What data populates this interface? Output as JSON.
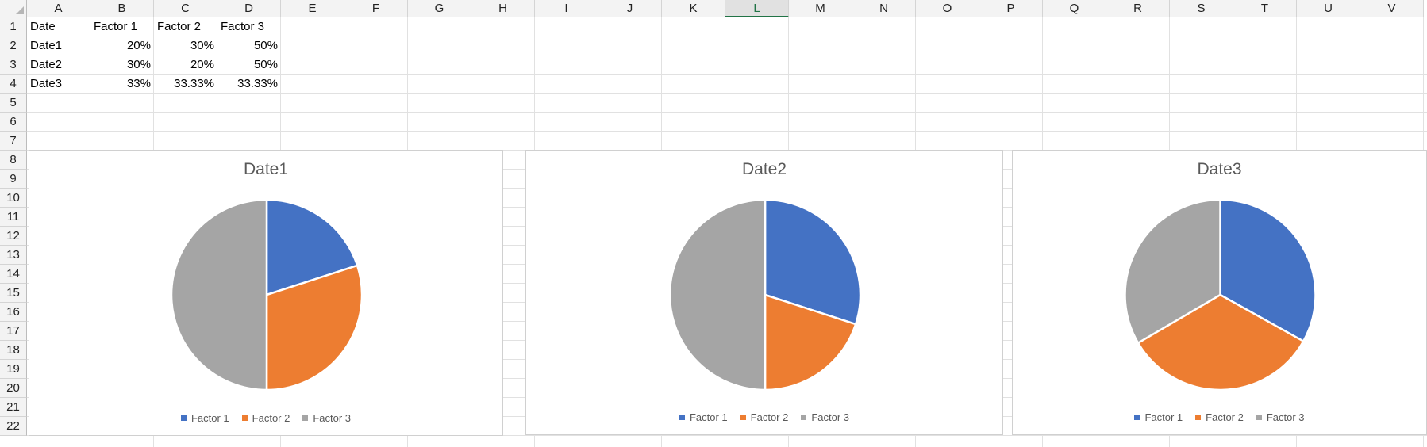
{
  "columns": [
    "A",
    "B",
    "C",
    "D",
    "E",
    "F",
    "G",
    "H",
    "I",
    "J",
    "K",
    "L",
    "M",
    "N",
    "O",
    "P",
    "Q",
    "R",
    "S",
    "T",
    "U",
    "V"
  ],
  "selected_column": "L",
  "rows": [
    "1",
    "2",
    "3",
    "4",
    "5",
    "6",
    "7",
    "8",
    "9",
    "10",
    "11",
    "12",
    "13",
    "14",
    "15",
    "16",
    "17",
    "18",
    "19",
    "20",
    "21",
    "22"
  ],
  "table": {
    "header": [
      "Date",
      "Factor 1",
      "Factor 2",
      "Factor 3"
    ],
    "rows": [
      [
        "Date1",
        "20%",
        "30%",
        "50%"
      ],
      [
        "Date2",
        "30%",
        "20%",
        "50%"
      ],
      [
        "Date3",
        "33%",
        "33.33%",
        "33.33%"
      ]
    ]
  },
  "colors": {
    "Factor 1": "#4472c4",
    "Factor 2": "#ed7d31",
    "Factor 3": "#a5a5a5"
  },
  "chart_data": [
    {
      "type": "pie",
      "title": "Date1",
      "categories": [
        "Factor 1",
        "Factor 2",
        "Factor 3"
      ],
      "values": [
        20,
        30,
        50
      ],
      "legend": "bottom"
    },
    {
      "type": "pie",
      "title": "Date2",
      "categories": [
        "Factor 1",
        "Factor 2",
        "Factor 3"
      ],
      "values": [
        30,
        20,
        50
      ],
      "legend": "bottom"
    },
    {
      "type": "pie",
      "title": "Date3",
      "categories": [
        "Factor 1",
        "Factor 2",
        "Factor 3"
      ],
      "values": [
        33,
        33.33,
        33.33
      ],
      "legend": "bottom"
    }
  ]
}
